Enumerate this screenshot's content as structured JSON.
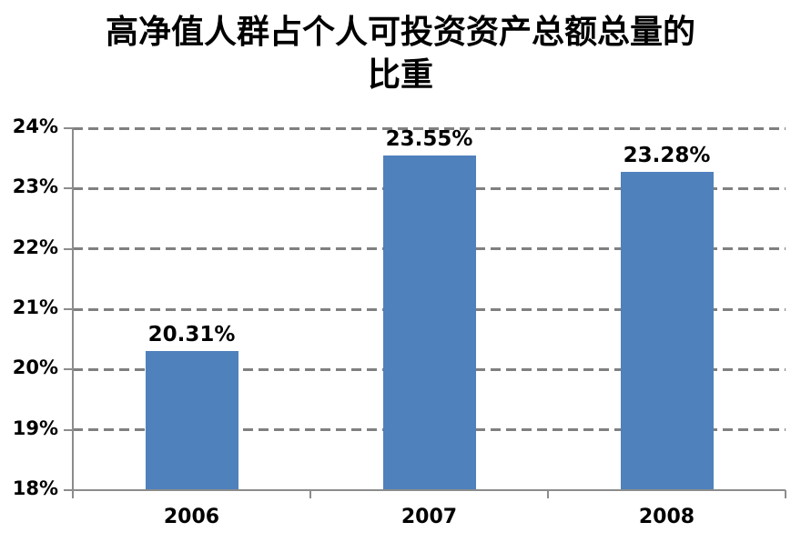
{
  "chart_data": {
    "type": "bar",
    "title": "高净值人群占个人可投资资产总额总量的比重",
    "title_lines": [
      "高净值人群占个人可投资资产总额总量的",
      "比重"
    ],
    "categories": [
      "2006",
      "2007",
      "2008"
    ],
    "values": [
      20.31,
      23.55,
      23.28
    ],
    "data_labels": [
      "20.31%",
      "23.55%",
      "23.28%"
    ],
    "xlabel": "",
    "ylabel": "",
    "ylim": [
      18,
      24
    ],
    "ytick_step": 1,
    "ytick_labels": [
      "18%",
      "19%",
      "20%",
      "21%",
      "22%",
      "23%",
      "24%"
    ],
    "grid": "horizontal-dashed",
    "legend": "none",
    "colors": {
      "bar": "#4F81BD",
      "gridline": "#808080",
      "axis": "#8C8C8C",
      "text": "#000000",
      "background": "#FFFFFF"
    }
  }
}
